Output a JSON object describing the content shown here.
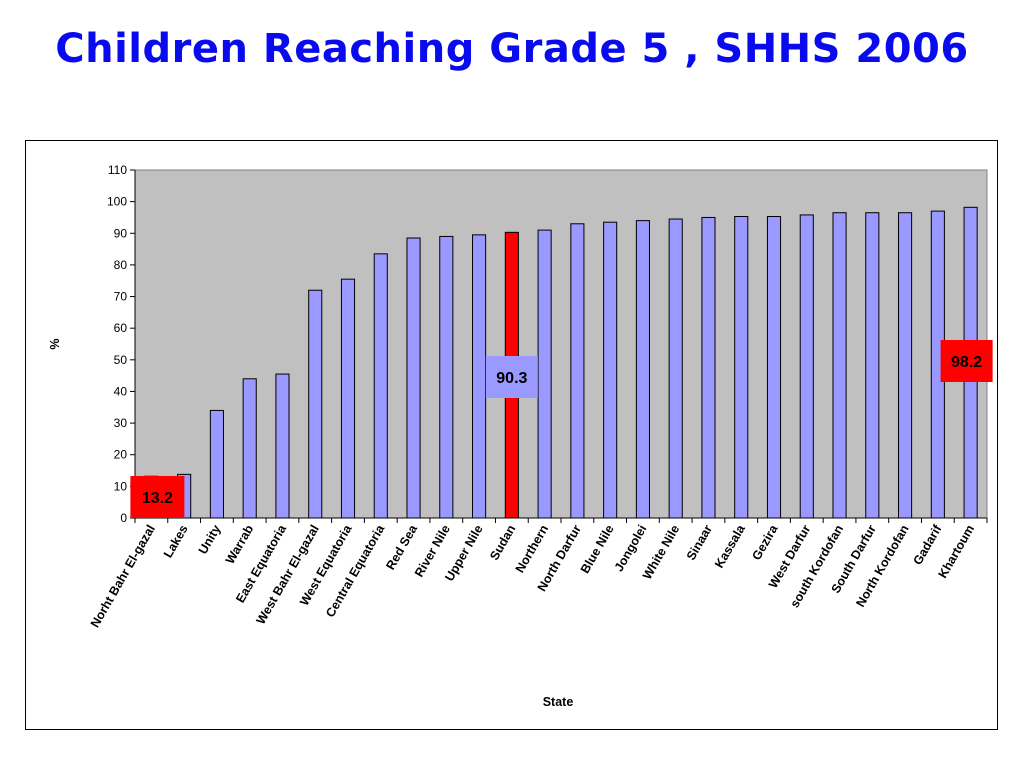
{
  "slide": {
    "title": "Children Reaching Grade 5 , SHHS 2006"
  },
  "colors": {
    "title": "#0a0aee",
    "bar_fill": "#9999ff",
    "bar_highlight": "#ff0000",
    "plot_background": "#c0c0c0",
    "callout_red": "#ff0000",
    "callout_blue": "#9999ff"
  },
  "chart_data": {
    "type": "bar",
    "title": "",
    "xlabel": "State",
    "ylabel": "%",
    "ylim": [
      0,
      110
    ],
    "yticks": [
      0,
      10,
      20,
      30,
      40,
      50,
      60,
      70,
      80,
      90,
      100,
      110
    ],
    "grid": false,
    "legend": "none",
    "categories": [
      "Norht Bahr El-gazal",
      "Lakes",
      "Unity",
      "Warrab",
      "East Equatoria",
      "West Bahr El-gazal",
      "West Equatoria",
      "Central Equatoria",
      "Red Sea",
      "River Nile",
      "Upper Nile",
      "Sudan",
      "Northern",
      "North Darfur",
      "Blue Nile",
      "Jongolei",
      "White Nile",
      "Sinaar",
      "Kassala",
      "Gezira",
      "West Darfur",
      "south Kordofan",
      "South Darfur",
      "North Kordofan",
      "Gadarif",
      "Khartoum"
    ],
    "values": [
      13.2,
      13.8,
      34.0,
      44.0,
      45.5,
      72.0,
      75.5,
      83.5,
      88.5,
      89.0,
      89.5,
      90.3,
      91.0,
      93.0,
      93.5,
      94.0,
      94.5,
      95.0,
      95.3,
      95.3,
      95.8,
      96.5,
      96.5,
      96.5,
      97.0,
      98.2
    ],
    "highlight_category": "Sudan",
    "annotations": [
      {
        "text": "13.2",
        "category": "Norht Bahr El-gazal",
        "style": "red"
      },
      {
        "text": "90.3",
        "category": "Sudan",
        "style": "blue"
      },
      {
        "text": "98.2",
        "category": "Khartoum",
        "style": "red"
      }
    ]
  }
}
